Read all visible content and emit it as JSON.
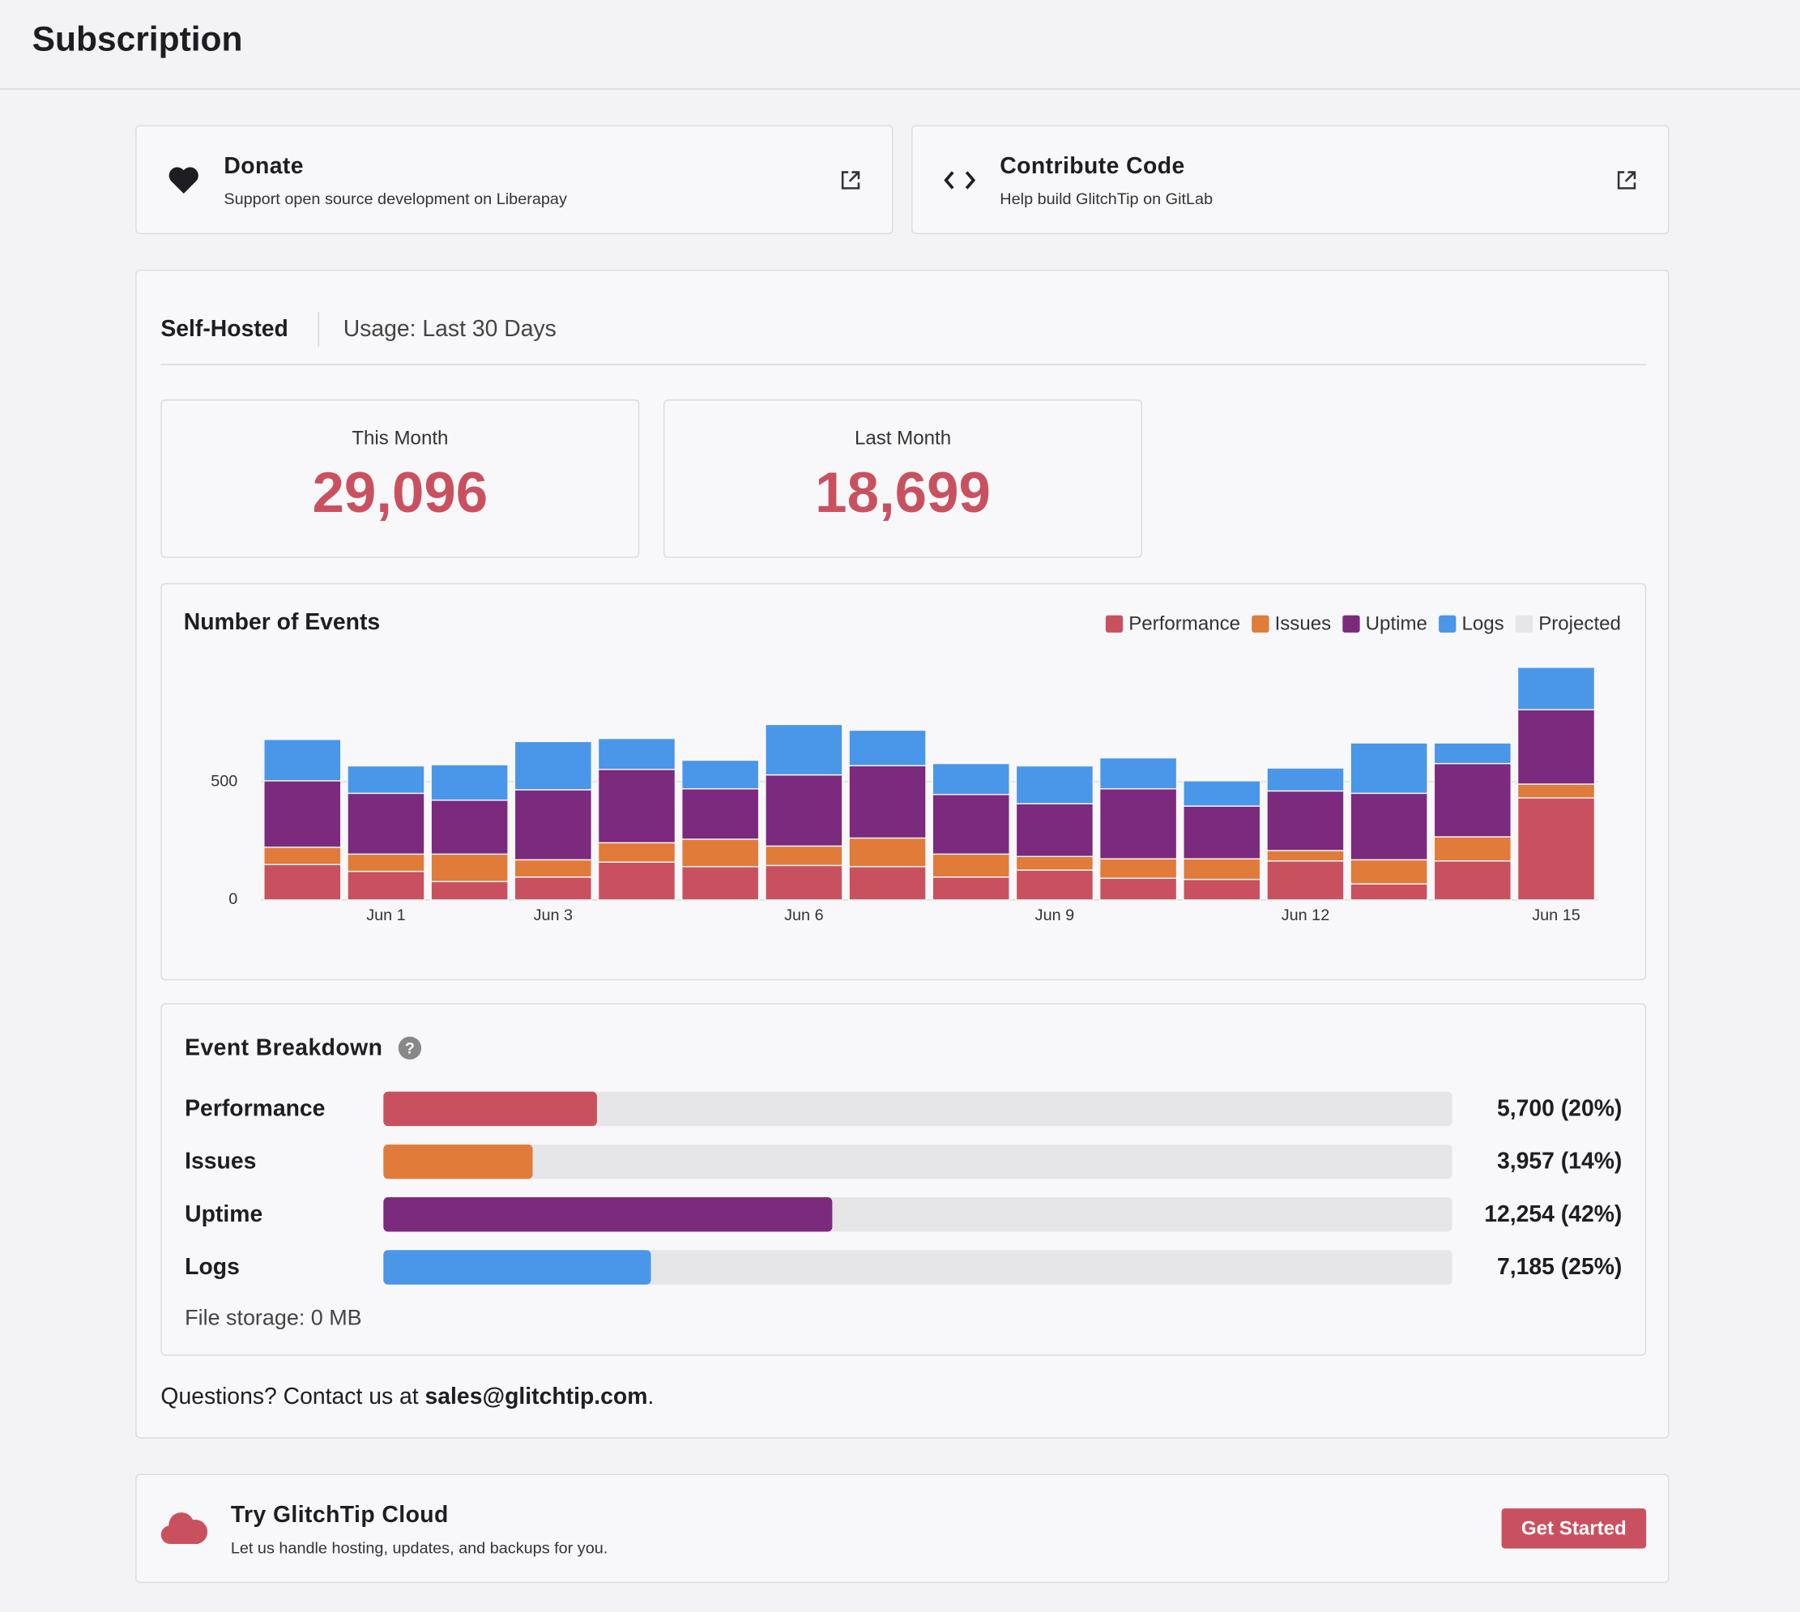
{
  "header": {
    "title": "Subscription"
  },
  "links": [
    {
      "title": "Donate",
      "text": "Support open source development on Liberapay"
    },
    {
      "title": "Contribute Code",
      "text": "Help build GlitchTip on GitLab"
    }
  ],
  "tabs": [
    "Self-Hosted",
    "Usage: Last 30 Days"
  ],
  "stats": [
    {
      "label": "This Month",
      "value": "29,096"
    },
    {
      "label": "Last Month",
      "value": "18,699"
    }
  ],
  "chart_data": {
    "type": "stacked-bar",
    "title": "Number of Events",
    "categories": [
      null,
      "Jun 1",
      null,
      "Jun 3",
      null,
      null,
      "Jun 6",
      null,
      null,
      "Jun 9",
      null,
      null,
      "Jun 12",
      null,
      null,
      "Jun 15"
    ],
    "series": [
      {
        "name": "Performance",
        "color": "#c9515f",
        "values": [
          150,
          121,
          78,
          97,
          160,
          141,
          146,
          141,
          97,
          126,
          92,
          87,
          165,
          68,
          165,
          432
        ]
      },
      {
        "name": "Issues",
        "color": "#e07b3a",
        "values": [
          73,
          73,
          116,
          73,
          82,
          116,
          82,
          121,
          97,
          58,
          82,
          87,
          44,
          102,
          102,
          58
        ]
      },
      {
        "name": "Uptime",
        "color": "#7b2a7e",
        "values": [
          281,
          257,
          228,
          296,
          310,
          213,
          301,
          306,
          252,
          223,
          296,
          223,
          252,
          281,
          310,
          315
        ]
      },
      {
        "name": "Logs",
        "color": "#4a96e8",
        "values": [
          175,
          116,
          150,
          204,
          131,
          121,
          213,
          150,
          131,
          160,
          131,
          107,
          97,
          213,
          87,
          179
        ]
      },
      {
        "name": "Projected",
        "color": "#e6e6e8",
        "values": [
          null,
          null,
          null,
          null,
          null,
          null,
          null,
          null,
          null,
          null,
          null,
          null,
          null,
          null,
          null,
          null
        ]
      }
    ],
    "ylim": [
      0,
      1000
    ],
    "yticks": [
      0,
      500
    ],
    "grid": true,
    "legend": "top-right"
  },
  "breakdown": {
    "title": "Event Breakdown",
    "rows": [
      {
        "name": "Performance",
        "percent": 20,
        "label": "5,700 (20%)",
        "color": "#c9515f"
      },
      {
        "name": "Issues",
        "percent": 14,
        "label": "3,957 (14%)",
        "color": "#e07b3a"
      },
      {
        "name": "Uptime",
        "percent": 42,
        "label": "12,254 (42%)",
        "color": "#7b2a7e"
      },
      {
        "name": "Logs",
        "percent": 25,
        "label": "7,185 (25%)",
        "color": "#4a96e8"
      }
    ],
    "storage": "File storage: 0 MB"
  },
  "contact": {
    "text": "Questions? Contact us at",
    "email": "sales@glitchtip.com",
    "end": "."
  },
  "cloud": {
    "title": "Try GlitchTip Cloud",
    "text": "Let us handle hosting, updates, and backups for you.",
    "button": "Get Started"
  }
}
